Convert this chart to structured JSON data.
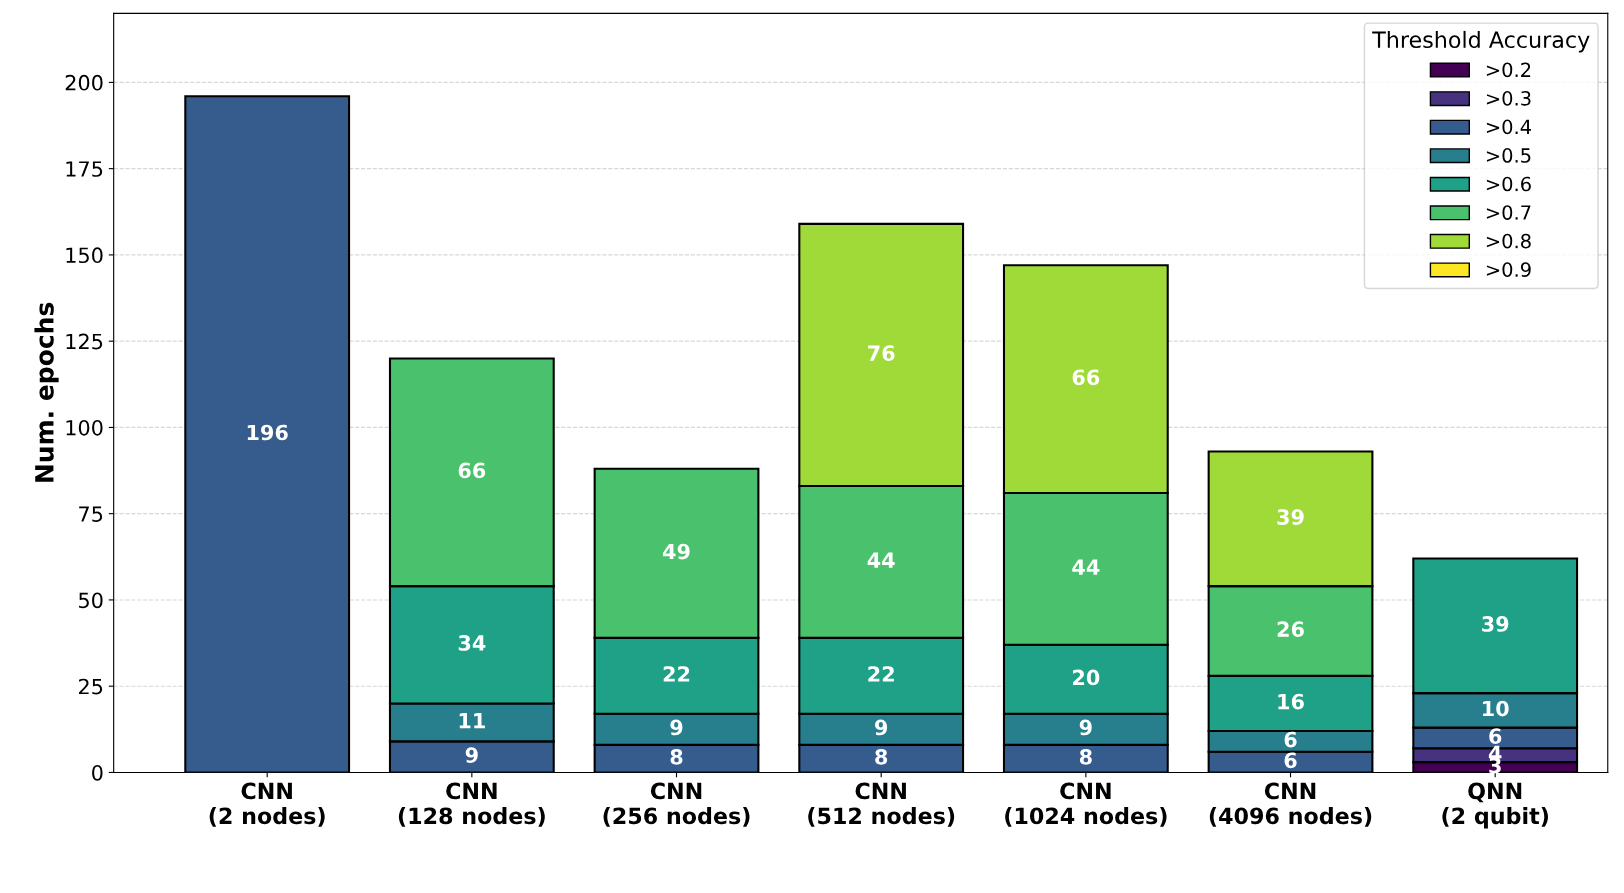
{
  "chart_data": {
    "type": "bar",
    "stacked": true,
    "ylabel": "Num. epochs",
    "legend_title": "Threshold Accuracy",
    "categories": [
      "CNN\n(2 nodes)",
      "CNN\n(128 nodes)",
      "CNN\n(256 nodes)",
      "CNN\n(512 nodes)",
      "CNN\n(1024 nodes)",
      "CNN\n(4096 nodes)",
      "QNN\n(2 qubit)"
    ],
    "series": [
      {
        "name": ">0.2",
        "color": "#440154",
        "values": [
          null,
          null,
          null,
          null,
          null,
          null,
          3
        ]
      },
      {
        "name": ">0.3",
        "color": "#46327e",
        "values": [
          null,
          null,
          null,
          null,
          null,
          null,
          4
        ]
      },
      {
        "name": ">0.4",
        "color": "#365c8d",
        "values": [
          196,
          9,
          8,
          8,
          8,
          6,
          6
        ]
      },
      {
        "name": ">0.5",
        "color": "#277f8e",
        "values": [
          null,
          11,
          9,
          9,
          9,
          6,
          10
        ]
      },
      {
        "name": ">0.6",
        "color": "#1fa187",
        "values": [
          null,
          34,
          22,
          22,
          20,
          16,
          39
        ]
      },
      {
        "name": ">0.7",
        "color": "#4ac16d",
        "values": [
          null,
          66,
          49,
          44,
          44,
          26,
          null
        ]
      },
      {
        "name": ">0.8",
        "color": "#a0da39",
        "values": [
          null,
          null,
          null,
          76,
          66,
          39,
          null
        ]
      },
      {
        "name": ">0.9",
        "color": "#fde725",
        "values": [
          null,
          null,
          null,
          null,
          null,
          null,
          null
        ]
      }
    ],
    "ylim": [
      0,
      220
    ],
    "yticks": [
      0,
      25,
      50,
      75,
      100,
      125,
      150,
      175,
      200
    ],
    "grid": "y",
    "legend": "top right",
    "data_labels": true
  }
}
